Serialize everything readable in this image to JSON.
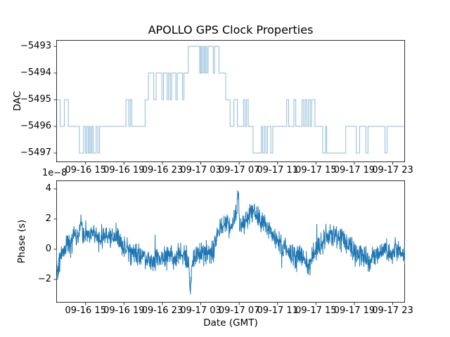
{
  "figure": {
    "background": "#ffffff",
    "line_color": "#1f77b4",
    "top_line_alpha": 0.5
  },
  "chart_data": [
    {
      "type": "line",
      "subplot": "top",
      "title": "APOLLO GPS Clock Properties",
      "ylabel": "DAC",
      "drawstyle": "steps-post",
      "yticks": [
        -5493,
        -5494,
        -5495,
        -5496,
        -5497
      ],
      "ytick_labels": [
        "−5493",
        "−5494",
        "−5495",
        "−5496",
        "−5497"
      ],
      "ylim": [
        -5497.34,
        -5492.76
      ],
      "xtick_hours": [
        15,
        19,
        23,
        27,
        31,
        35,
        39,
        43,
        47
      ],
      "xtick_labels": [
        "09-16 15",
        "09-16 19",
        "09-16 23",
        "09-17 03",
        "09-17 07",
        "09-17 11",
        "09-17 15",
        "09-17 19",
        "09-17 23"
      ],
      "xlim_hours": [
        11.94,
        48.28
      ],
      "x_unit": "hours after 09-16 00:00 GMT",
      "start_value": -5495,
      "steps": [
        [
          12.35,
          -5496
        ],
        [
          12.78,
          -5495
        ],
        [
          13.2,
          -5496
        ],
        [
          14.35,
          -5497
        ],
        [
          14.78,
          -5496
        ],
        [
          14.97,
          -5497
        ],
        [
          15.12,
          -5496
        ],
        [
          15.27,
          -5497
        ],
        [
          15.4,
          -5496
        ],
        [
          15.53,
          -5497
        ],
        [
          15.66,
          -5496
        ],
        [
          15.8,
          -5497
        ],
        [
          16.1,
          -5496
        ],
        [
          16.28,
          -5497
        ],
        [
          16.45,
          -5496
        ],
        [
          19.2,
          -5495
        ],
        [
          19.5,
          -5496
        ],
        [
          19.65,
          -5495
        ],
        [
          19.82,
          -5496
        ],
        [
          21.2,
          -5495
        ],
        [
          21.55,
          -5494
        ],
        [
          22.1,
          -5495
        ],
        [
          22.35,
          -5494
        ],
        [
          22.95,
          -5495
        ],
        [
          23.12,
          -5494
        ],
        [
          23.5,
          -5495
        ],
        [
          23.65,
          -5494
        ],
        [
          23.82,
          -5495
        ],
        [
          23.97,
          -5494
        ],
        [
          24.4,
          -5495
        ],
        [
          24.55,
          -5494
        ],
        [
          25.1,
          -5495
        ],
        [
          25.25,
          -5494
        ],
        [
          25.7,
          -5493
        ],
        [
          26.88,
          -5494
        ],
        [
          27.0,
          -5493
        ],
        [
          27.1,
          -5494
        ],
        [
          27.24,
          -5493
        ],
        [
          27.36,
          -5494
        ],
        [
          27.5,
          -5493
        ],
        [
          27.62,
          -5494
        ],
        [
          27.76,
          -5493
        ],
        [
          28.3,
          -5494
        ],
        [
          28.44,
          -5493
        ],
        [
          28.9,
          -5494
        ],
        [
          29.6,
          -5495
        ],
        [
          30.05,
          -5496
        ],
        [
          30.45,
          -5495
        ],
        [
          30.82,
          -5496
        ],
        [
          31.45,
          -5495
        ],
        [
          31.62,
          -5496
        ],
        [
          31.78,
          -5495
        ],
        [
          31.95,
          -5496
        ],
        [
          32.45,
          -5497
        ],
        [
          33.3,
          -5496
        ],
        [
          33.45,
          -5497
        ],
        [
          33.62,
          -5496
        ],
        [
          33.78,
          -5497
        ],
        [
          33.95,
          -5496
        ],
        [
          34.3,
          -5497
        ],
        [
          34.5,
          -5496
        ],
        [
          35.95,
          -5495
        ],
        [
          36.15,
          -5496
        ],
        [
          36.7,
          -5495
        ],
        [
          36.9,
          -5496
        ],
        [
          37.55,
          -5495
        ],
        [
          37.72,
          -5496
        ],
        [
          37.88,
          -5495
        ],
        [
          38.05,
          -5496
        ],
        [
          38.22,
          -5495
        ],
        [
          38.4,
          -5496
        ],
        [
          38.55,
          -5495
        ],
        [
          38.9,
          -5496
        ],
        [
          39.7,
          -5497
        ],
        [
          40.0,
          -5496
        ],
        [
          40.12,
          -5497
        ],
        [
          42.1,
          -5496
        ],
        [
          43.2,
          -5497
        ],
        [
          43.55,
          -5496
        ],
        [
          44.2,
          -5497
        ],
        [
          44.42,
          -5496
        ],
        [
          46.2,
          -5497
        ],
        [
          46.42,
          -5496
        ]
      ]
    },
    {
      "type": "line",
      "subplot": "bottom",
      "ylabel": "Phase (s)",
      "offset_text": "1e−8",
      "xlabel": "Date (GMT)",
      "yticks": [
        4,
        2,
        0,
        -2
      ],
      "ytick_labels": [
        "4",
        "2",
        "0",
        "−2"
      ],
      "ylim": [
        -3.53,
        4.56
      ],
      "value_scale": "1e-8 s",
      "xtick_hours": [
        15,
        19,
        23,
        27,
        31,
        35,
        39,
        43,
        47
      ],
      "xtick_labels": [
        "09-16 15",
        "09-16 19",
        "09-16 23",
        "09-17 03",
        "09-17 07",
        "09-17 11",
        "09-17 15",
        "09-17 19",
        "09-17 23"
      ],
      "xlim_hours": [
        11.94,
        48.28
      ],
      "trend": [
        [
          11.94,
          -0.3
        ],
        [
          12.05,
          -1.4
        ],
        [
          12.4,
          -0.5
        ],
        [
          12.9,
          0.2
        ],
        [
          13.6,
          0.55
        ],
        [
          14.35,
          1.0
        ],
        [
          14.5,
          2.2
        ],
        [
          14.7,
          0.9
        ],
        [
          15.2,
          0.85
        ],
        [
          15.8,
          1.05
        ],
        [
          16.4,
          0.7
        ],
        [
          17.0,
          0.95
        ],
        [
          17.6,
          0.75
        ],
        [
          18.3,
          0.6
        ],
        [
          19.0,
          0.2
        ],
        [
          19.6,
          -0.1
        ],
        [
          20.3,
          -0.35
        ],
        [
          21.0,
          -0.4
        ],
        [
          21.6,
          -0.7
        ],
        [
          22.0,
          -1.05
        ],
        [
          22.4,
          -0.45
        ],
        [
          23.0,
          -0.55
        ],
        [
          23.7,
          -0.35
        ],
        [
          24.3,
          -0.6
        ],
        [
          24.9,
          -0.3
        ],
        [
          25.4,
          -0.55
        ],
        [
          25.75,
          -0.8
        ],
        [
          25.88,
          -3.0
        ],
        [
          26.1,
          -0.9
        ],
        [
          26.6,
          -0.3
        ],
        [
          27.2,
          -0.2
        ],
        [
          27.9,
          -0.35
        ],
        [
          28.4,
          0.0
        ],
        [
          28.8,
          1.2
        ],
        [
          29.2,
          1.5
        ],
        [
          29.7,
          1.8
        ],
        [
          30.1,
          1.5
        ],
        [
          30.5,
          2.0
        ],
        [
          30.75,
          2.4
        ],
        [
          30.87,
          4.1
        ],
        [
          31.05,
          1.6
        ],
        [
          31.5,
          1.7
        ],
        [
          32.0,
          2.2
        ],
        [
          32.5,
          2.6
        ],
        [
          32.9,
          2.1
        ],
        [
          33.3,
          1.8
        ],
        [
          33.9,
          1.5
        ],
        [
          34.5,
          1.0
        ],
        [
          35.1,
          0.5
        ],
        [
          35.7,
          0.05
        ],
        [
          36.3,
          -0.45
        ],
        [
          37.0,
          -0.4
        ],
        [
          37.7,
          -0.55
        ],
        [
          38.3,
          -1.15
        ],
        [
          38.6,
          -0.5
        ],
        [
          39.2,
          0.15
        ],
        [
          39.8,
          0.6
        ],
        [
          40.4,
          0.9
        ],
        [
          41.0,
          0.7
        ],
        [
          41.7,
          0.85
        ],
        [
          42.3,
          0.3
        ],
        [
          42.9,
          -0.2
        ],
        [
          43.5,
          -0.45
        ],
        [
          44.1,
          -0.25
        ],
        [
          44.6,
          -1.1
        ],
        [
          45.0,
          -0.35
        ],
        [
          45.6,
          -0.2
        ],
        [
          46.2,
          0.1
        ],
        [
          46.8,
          -0.35
        ],
        [
          47.3,
          0.2
        ],
        [
          47.8,
          -0.15
        ],
        [
          48.28,
          -0.4
        ]
      ],
      "noise": {
        "seed": 42,
        "n_points": 1500,
        "amplitude": 0.72,
        "spike_prob": 0.025,
        "spike_scale": 2.4
      }
    }
  ]
}
